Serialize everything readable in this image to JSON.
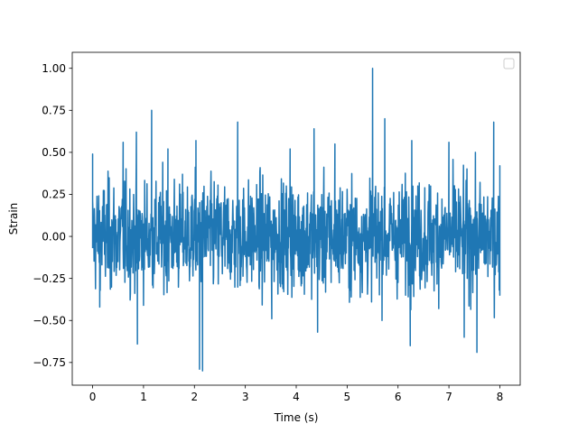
{
  "chart_data": {
    "type": "line",
    "title": "",
    "xlabel": "Time (s)",
    "ylabel": "Strain",
    "xlim": [
      -0.4,
      8.4
    ],
    "ylim": [
      -0.885,
      1.095
    ],
    "xticks": [
      0,
      1,
      2,
      3,
      4,
      5,
      6,
      7,
      8
    ],
    "xtick_labels": [
      "0",
      "1",
      "2",
      "3",
      "4",
      "5",
      "6",
      "7",
      "8"
    ],
    "yticks": [
      -0.75,
      -0.5,
      -0.25,
      0.0,
      0.25,
      0.5,
      0.75,
      1.0
    ],
    "ytick_labels": [
      "−0.75",
      "−0.50",
      "−0.25",
      "0.00",
      "0.25",
      "0.50",
      "0.75",
      "1.00"
    ],
    "grid": false,
    "legend": {
      "placement": "upper right",
      "entries": []
    },
    "series": [
      {
        "color": "#1f77b4",
        "x_range": [
          0,
          8
        ],
        "noise_band": [
          -0.35,
          0.35
        ],
        "peaks": [
          {
            "x": 0.0,
            "y": 0.49
          },
          {
            "x": 0.0,
            "y": -0.07
          },
          {
            "x": 0.14,
            "y": -0.42
          },
          {
            "x": 0.6,
            "y": 0.56
          },
          {
            "x": 0.86,
            "y": 0.62
          },
          {
            "x": 0.88,
            "y": -0.64
          },
          {
            "x": 1.16,
            "y": 0.75
          },
          {
            "x": 1.48,
            "y": 0.52
          },
          {
            "x": 2.03,
            "y": 0.57
          },
          {
            "x": 2.1,
            "y": -0.79
          },
          {
            "x": 2.16,
            "y": -0.8
          },
          {
            "x": 2.85,
            "y": 0.68
          },
          {
            "x": 3.52,
            "y": -0.49
          },
          {
            "x": 3.88,
            "y": 0.52
          },
          {
            "x": 4.35,
            "y": 0.64
          },
          {
            "x": 4.42,
            "y": -0.57
          },
          {
            "x": 4.76,
            "y": 0.55
          },
          {
            "x": 5.5,
            "y": 1.0
          },
          {
            "x": 5.74,
            "y": 0.7
          },
          {
            "x": 6.24,
            "y": -0.65
          },
          {
            "x": 6.27,
            "y": 0.57
          },
          {
            "x": 7.0,
            "y": 0.56
          },
          {
            "x": 7.3,
            "y": -0.6
          },
          {
            "x": 7.55,
            "y": -0.69
          },
          {
            "x": 7.88,
            "y": 0.68
          },
          {
            "x": 8.0,
            "y": 0.42
          },
          {
            "x": 8.0,
            "y": -0.35
          }
        ]
      }
    ]
  }
}
